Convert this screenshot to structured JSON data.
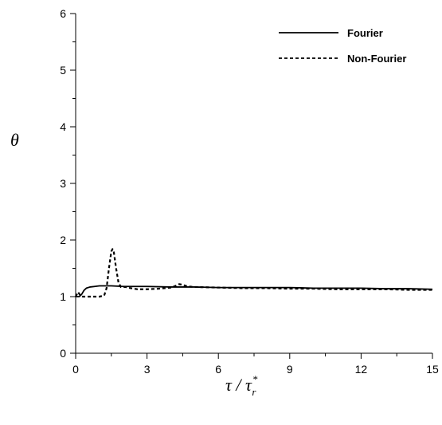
{
  "chart_data": {
    "type": "line",
    "xlabel": "τ / τ*r",
    "ylabel": "θ",
    "xlim": [
      0,
      15
    ],
    "ylim": [
      0,
      6
    ],
    "xticks": [
      0,
      3,
      6,
      9,
      12,
      15
    ],
    "yticks": [
      0,
      1,
      2,
      3,
      4,
      5,
      6
    ],
    "grid": false,
    "legend_position": "top-right",
    "series": [
      {
        "name": "Fourier",
        "style": "solid",
        "color": "#000000",
        "points": [
          [
            0,
            1.0
          ],
          [
            0.15,
            1.0
          ],
          [
            0.25,
            1.04
          ],
          [
            0.35,
            1.11
          ],
          [
            0.45,
            1.15
          ],
          [
            0.6,
            1.17
          ],
          [
            0.8,
            1.18
          ],
          [
            1.0,
            1.19
          ],
          [
            1.5,
            1.19
          ],
          [
            2.0,
            1.18
          ],
          [
            3.0,
            1.18
          ],
          [
            4.0,
            1.17
          ],
          [
            5.0,
            1.17
          ],
          [
            6.0,
            1.16
          ],
          [
            7.0,
            1.16
          ],
          [
            8.0,
            1.16
          ],
          [
            9.0,
            1.16
          ],
          [
            10.0,
            1.15
          ],
          [
            11.0,
            1.15
          ],
          [
            12.0,
            1.15
          ],
          [
            13.0,
            1.14
          ],
          [
            14.0,
            1.14
          ],
          [
            15.0,
            1.13
          ]
        ]
      },
      {
        "name": "Non-Fourier",
        "style": "dashed",
        "color": "#000000",
        "points": [
          [
            0,
            1.0
          ],
          [
            0.1,
            1.08
          ],
          [
            0.2,
            1.02
          ],
          [
            0.3,
            1.0
          ],
          [
            1.0,
            1.0
          ],
          [
            1.2,
            1.02
          ],
          [
            1.3,
            1.15
          ],
          [
            1.4,
            1.5
          ],
          [
            1.5,
            1.8
          ],
          [
            1.55,
            1.84
          ],
          [
            1.6,
            1.8
          ],
          [
            1.7,
            1.5
          ],
          [
            1.8,
            1.25
          ],
          [
            1.9,
            1.17
          ],
          [
            2.1,
            1.17
          ],
          [
            2.3,
            1.15
          ],
          [
            2.6,
            1.13
          ],
          [
            3.0,
            1.13
          ],
          [
            3.5,
            1.14
          ],
          [
            4.0,
            1.16
          ],
          [
            4.2,
            1.19
          ],
          [
            4.35,
            1.22
          ],
          [
            4.5,
            1.21
          ],
          [
            4.7,
            1.18
          ],
          [
            5.0,
            1.17
          ],
          [
            6.0,
            1.16
          ],
          [
            7.0,
            1.15
          ],
          [
            8.0,
            1.15
          ],
          [
            9.0,
            1.14
          ],
          [
            10.0,
            1.14
          ],
          [
            11.0,
            1.13
          ],
          [
            12.0,
            1.13
          ],
          [
            13.0,
            1.13
          ],
          [
            14.0,
            1.12
          ],
          [
            15.0,
            1.12
          ]
        ]
      }
    ]
  }
}
